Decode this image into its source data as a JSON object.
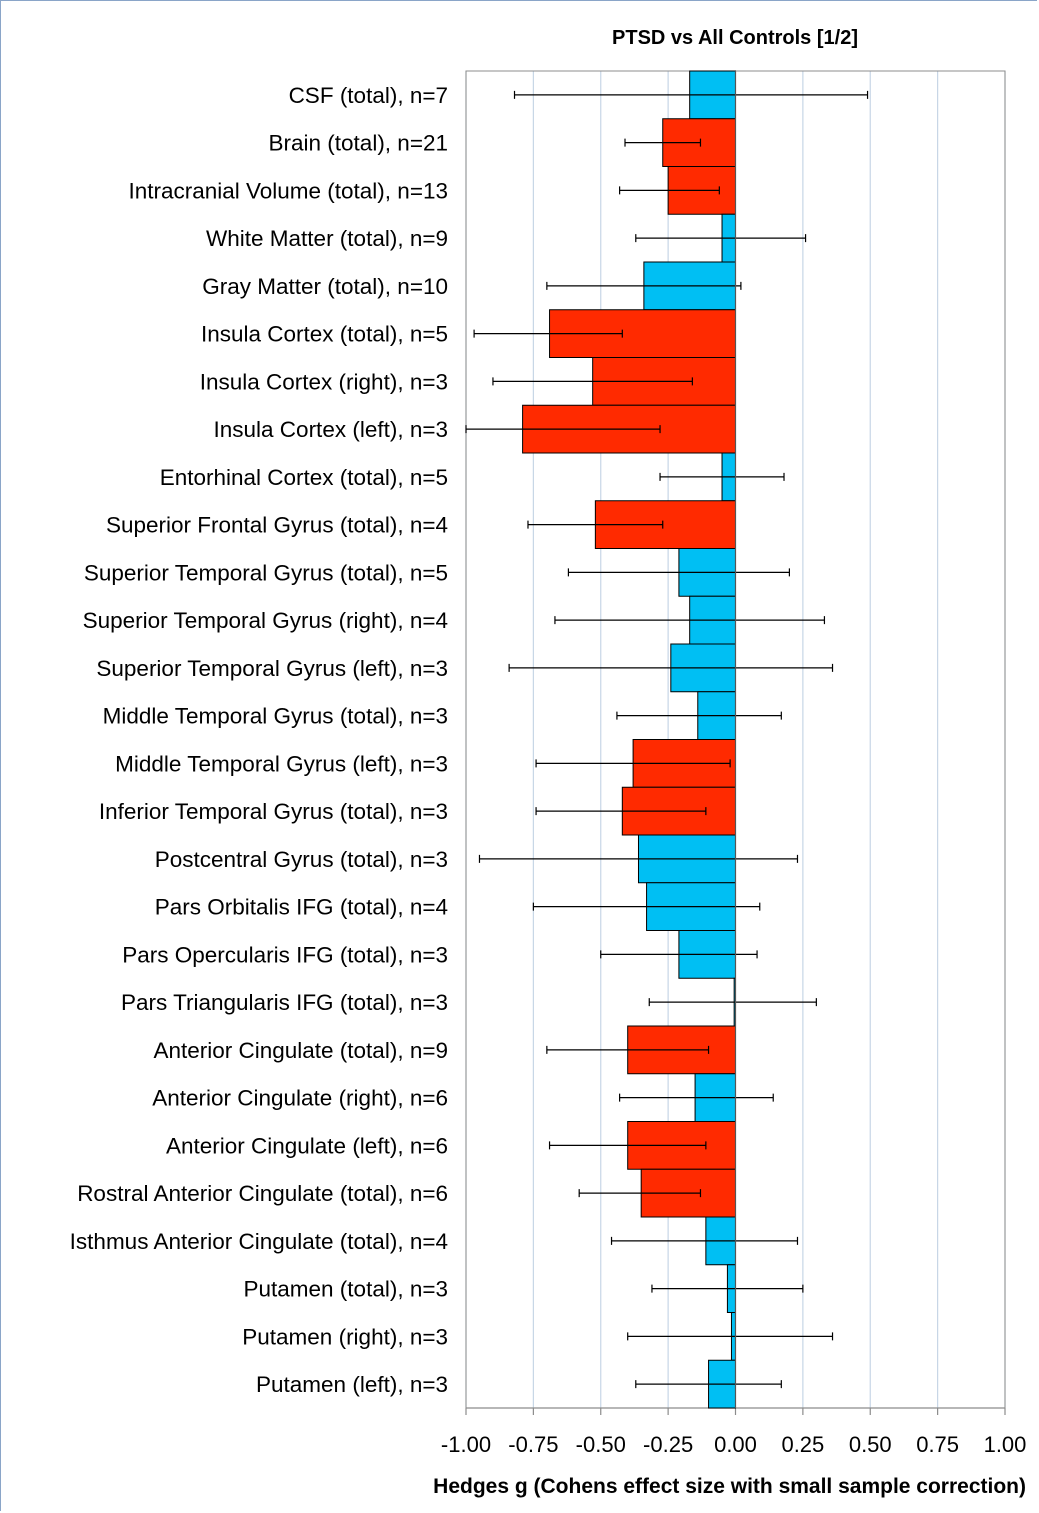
{
  "chart_data": {
    "type": "bar",
    "orientation": "horizontal",
    "title": "PTSD vs All Controls [1/2]",
    "xlabel": "Hedges g (Cohens effect size with small sample correction)",
    "ylabel": "",
    "xlim": [
      -1.0,
      1.0
    ],
    "xticks": [
      "-1.00",
      "-0.75",
      "-0.50",
      "-0.25",
      "0.00",
      "0.25",
      "0.50",
      "0.75",
      "1.00"
    ],
    "xtick_values": [
      -1.0,
      -0.75,
      -0.5,
      -0.25,
      0.0,
      0.25,
      0.5,
      0.75,
      1.0
    ],
    "grid": true,
    "colors": {
      "significant": "#ff2a00",
      "nonsignificant": "#00bff3",
      "error_bar": "#000000",
      "grid": "#c7d6e6",
      "axis": "#8c8c8c"
    },
    "categories": [
      "CSF (total), n=7",
      "Brain (total), n=21",
      "Intracranial Volume (total), n=13",
      "White Matter (total), n=9",
      "Gray Matter (total), n=10",
      "Insula Cortex (total), n=5",
      "Insula Cortex (right), n=3",
      "Insula Cortex (left), n=3",
      "Entorhinal Cortex (total), n=5",
      "Superior Frontal Gyrus (total), n=4",
      "Superior Temporal Gyrus (total), n=5",
      "Superior Temporal Gyrus (right), n=4",
      "Superior Temporal Gyrus (left), n=3",
      "Middle Temporal Gyrus (total), n=3",
      "Middle Temporal Gyrus (left), n=3",
      "Inferior Temporal Gyrus (total), n=3",
      "Postcentral Gyrus (total), n=3",
      "Pars Orbitalis IFG (total), n=4",
      "Pars Opercularis IFG (total), n=3",
      "Pars Triangularis IFG (total), n=3",
      "Anterior Cingulate (total), n=9",
      "Anterior Cingulate (right), n=6",
      "Anterior Cingulate (left), n=6",
      "Rostral Anterior Cingulate (total), n=6",
      "Isthmus Anterior Cingulate (total), n=4",
      "Putamen (total), n=3",
      "Putamen (right), n=3",
      "Putamen (left), n=3"
    ],
    "values": [
      -0.17,
      -0.27,
      -0.25,
      -0.05,
      -0.34,
      -0.69,
      -0.53,
      -0.79,
      -0.05,
      -0.52,
      -0.21,
      -0.17,
      -0.24,
      -0.14,
      -0.38,
      -0.42,
      -0.36,
      -0.33,
      -0.21,
      -0.005,
      -0.4,
      -0.15,
      -0.4,
      -0.35,
      -0.11,
      -0.03,
      -0.015,
      -0.1
    ],
    "ci_low": [
      -0.82,
      -0.41,
      -0.43,
      -0.37,
      -0.7,
      -0.97,
      -0.9,
      -1.0,
      -0.28,
      -0.77,
      -0.62,
      -0.67,
      -0.84,
      -0.44,
      -0.74,
      -0.74,
      -0.95,
      -0.75,
      -0.5,
      -0.32,
      -0.7,
      -0.43,
      -0.69,
      -0.58,
      -0.46,
      -0.31,
      -0.4,
      -0.37
    ],
    "ci_high": [
      0.49,
      -0.13,
      -0.06,
      0.26,
      0.02,
      -0.42,
      -0.16,
      -0.28,
      0.18,
      -0.27,
      0.2,
      0.33,
      0.36,
      0.17,
      -0.02,
      -0.11,
      0.23,
      0.09,
      0.08,
      0.3,
      -0.1,
      0.14,
      -0.11,
      -0.13,
      0.23,
      0.25,
      0.36,
      0.17
    ],
    "significant": [
      false,
      true,
      true,
      false,
      false,
      true,
      true,
      true,
      false,
      true,
      false,
      false,
      false,
      false,
      true,
      true,
      false,
      false,
      false,
      false,
      true,
      false,
      true,
      true,
      false,
      false,
      false,
      false
    ]
  }
}
